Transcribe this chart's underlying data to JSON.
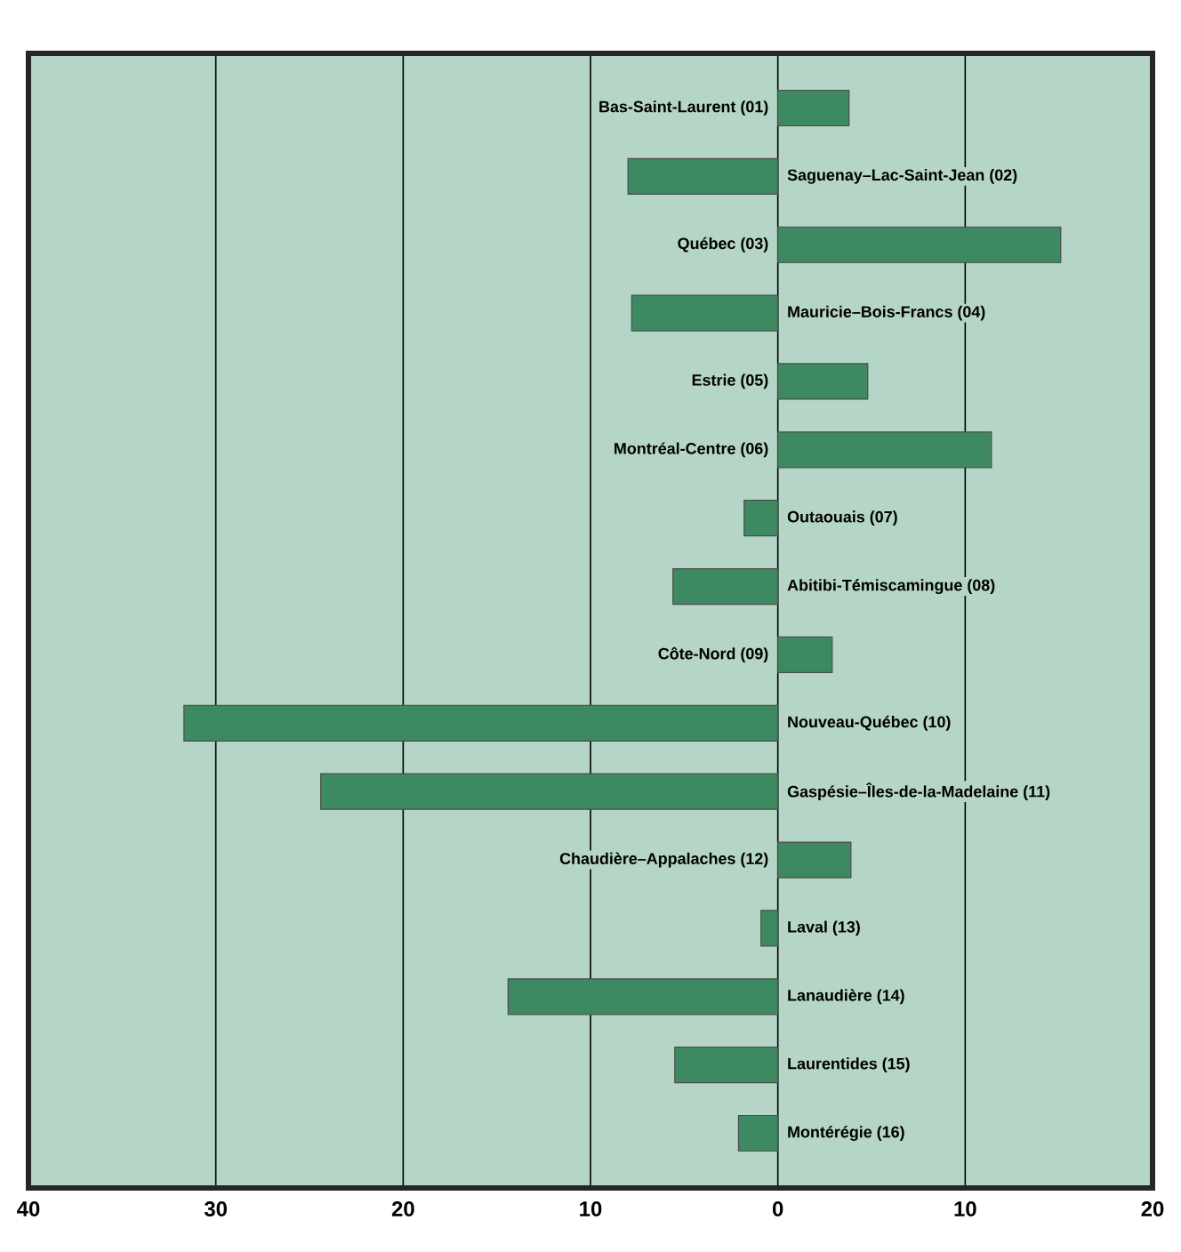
{
  "chart_data": {
    "type": "bar",
    "orientation": "horizontal",
    "categories": [
      "Bas-Saint-Laurent (01)",
      "Saguenay–Lac-Saint-Jean (02)",
      "Québec (03)",
      "Mauricie–Bois-Francs (04)",
      "Estrie (05)",
      "Montréal-Centre (06)",
      "Outaouais (07)",
      "Abitibi-Témiscamingue (08)",
      "Côte-Nord (09)",
      "Nouveau-Québec (10)",
      "Gaspésie–Îles-de-la-Madelaine (11)",
      "Chaudière–Appalaches (12)",
      "Laval (13)",
      "Lanaudière (14)",
      "Laurentides (15)",
      "Montérégie (16)"
    ],
    "values": [
      3.8,
      -8.0,
      15.1,
      -7.8,
      4.8,
      11.4,
      -1.8,
      -5.6,
      2.9,
      -31.7,
      -24.4,
      3.9,
      -0.9,
      -14.4,
      -5.5,
      -2.1
    ],
    "color": "#3d8a62",
    "xlim": [
      -40,
      20
    ],
    "xticks": [
      {
        "value": -40,
        "label": "40"
      },
      {
        "value": -30,
        "label": "30"
      },
      {
        "value": -20,
        "label": "20"
      },
      {
        "value": -10,
        "label": "10"
      },
      0,
      {
        "value": 10,
        "label": "10"
      },
      20
    ],
    "grid": "x",
    "tick_labels": "x"
  }
}
